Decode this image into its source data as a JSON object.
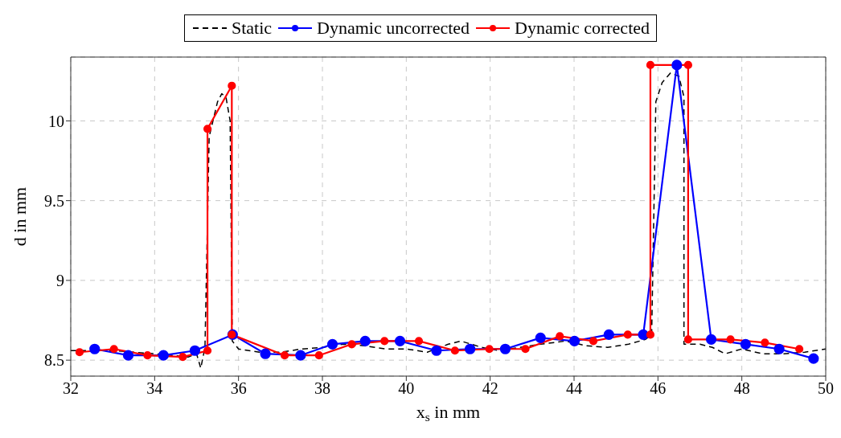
{
  "chart_data": {
    "type": "line",
    "xlabel": "x$_{s}$ in mm",
    "ylabel": "d in mm",
    "xlim": [
      32,
      50
    ],
    "xticks": [
      32,
      34,
      36,
      38,
      40,
      42,
      44,
      46,
      48,
      50
    ],
    "ylim": [
      8.4,
      10.4
    ],
    "yticks": [
      8.5,
      9,
      9.5,
      10
    ],
    "grid": true,
    "legend": "top",
    "series": [
      {
        "name": "Static",
        "color": "#000000",
        "marker": "none",
        "line_style": "dashed",
        "x": [
          32,
          33,
          34,
          34.8,
          35,
          35.1,
          35.2,
          35.3,
          35.5,
          35.6,
          35.7,
          35.8,
          35.85,
          36,
          36.5,
          37,
          37.5,
          38,
          38.5,
          39,
          39.5,
          40,
          40.5,
          41,
          41.3,
          41.8,
          42.2,
          42.7,
          43.2,
          43.8,
          44.3,
          44.8,
          45.3,
          45.7,
          45.85,
          45.95,
          46.1,
          46.3,
          46.5,
          46.62,
          46.62,
          47,
          47.3,
          47.6,
          48,
          48.5,
          49,
          49.5,
          50
        ],
        "values": [
          8.56,
          8.56,
          8.54,
          8.52,
          8.54,
          8.45,
          8.58,
          9.9,
          10.12,
          10.17,
          10.15,
          10.0,
          8.62,
          8.57,
          8.55,
          8.55,
          8.57,
          8.58,
          8.6,
          8.59,
          8.57,
          8.57,
          8.55,
          8.6,
          8.62,
          8.58,
          8.56,
          8.58,
          8.6,
          8.62,
          8.59,
          8.58,
          8.6,
          8.63,
          8.66,
          10.12,
          10.24,
          10.3,
          10.28,
          10.15,
          8.6,
          8.6,
          8.58,
          8.54,
          8.57,
          8.54,
          8.54,
          8.55,
          8.57
        ]
      },
      {
        "name": "Dynamic uncorrected",
        "color": "#0000ff",
        "marker": "circle",
        "line_style": "solid",
        "x": [
          32.57,
          33.37,
          34.21,
          34.96,
          35.86,
          36.64,
          37.48,
          38.24,
          39.02,
          39.85,
          40.72,
          41.52,
          42.36,
          43.2,
          44.01,
          44.83,
          45.65,
          46.45,
          47.27,
          48.09,
          48.89,
          49.71
        ],
        "values": [
          8.57,
          8.53,
          8.53,
          8.56,
          8.66,
          8.54,
          8.53,
          8.6,
          8.62,
          8.62,
          8.56,
          8.57,
          8.57,
          8.64,
          8.62,
          8.66,
          8.66,
          10.35,
          8.63,
          8.6,
          8.57,
          8.51
        ]
      },
      {
        "name": "Dynamic corrected",
        "color": "#ff0000",
        "marker": "circle",
        "line_style": "solid",
        "x": [
          32.21,
          33.03,
          33.83,
          34.67,
          35.26,
          35.26,
          35.84,
          35.84,
          37.1,
          37.92,
          38.7,
          39.48,
          40.3,
          41.16,
          41.98,
          42.84,
          43.66,
          44.46,
          45.28,
          45.82,
          45.82,
          46.72,
          46.72,
          47.73,
          48.55,
          49.37
        ],
        "values": [
          8.55,
          8.57,
          8.53,
          8.52,
          8.56,
          9.95,
          10.22,
          8.66,
          8.53,
          8.53,
          8.6,
          8.62,
          8.62,
          8.56,
          8.57,
          8.57,
          8.65,
          8.62,
          8.66,
          8.66,
          10.35,
          10.35,
          8.63,
          8.63,
          8.61,
          8.57
        ]
      }
    ]
  }
}
